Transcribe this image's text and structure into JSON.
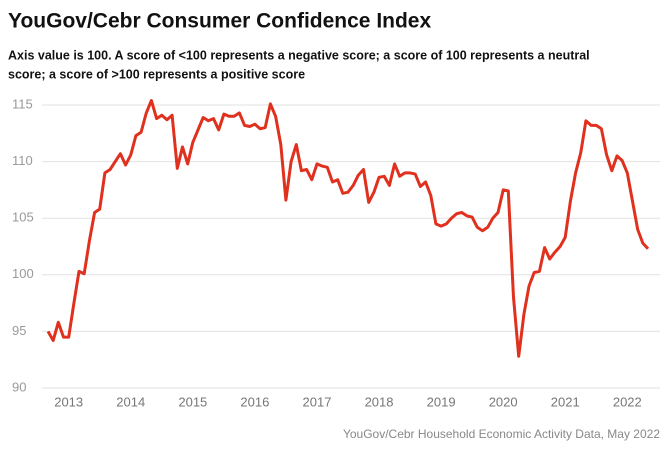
{
  "chart_data": {
    "type": "line",
    "title": "YouGov/Cebr Consumer Confidence Index",
    "subtitle": [
      "Axis value is 100. A score of <100 represents a negative score; a score of 100 represents a neutral",
      "score; a score of >100 represents a positive score"
    ],
    "source": "YouGov/Cebr Household Economic Activity Data, May 2022",
    "categories": [
      null,
      null,
      null,
      null,
      "2013",
      null,
      null,
      null,
      null,
      null,
      null,
      null,
      null,
      null,
      null,
      null,
      "2014",
      null,
      null,
      null,
      null,
      null,
      null,
      null,
      null,
      null,
      null,
      null,
      "2015",
      null,
      null,
      null,
      null,
      null,
      null,
      null,
      null,
      null,
      null,
      null,
      "2016",
      null,
      null,
      null,
      null,
      null,
      null,
      null,
      null,
      null,
      null,
      null,
      "2017",
      null,
      null,
      null,
      null,
      null,
      null,
      null,
      null,
      null,
      null,
      null,
      "2018",
      null,
      null,
      null,
      null,
      null,
      null,
      null,
      null,
      null,
      null,
      null,
      "2019",
      null,
      null,
      null,
      null,
      null,
      null,
      null,
      null,
      null,
      null,
      null,
      "2020",
      null,
      null,
      null,
      null,
      null,
      null,
      null,
      null,
      null,
      null,
      null,
      "2021",
      null,
      null,
      null,
      null,
      null,
      null,
      null,
      null,
      null,
      null,
      null,
      "2022",
      null,
      null,
      null,
      null
    ],
    "series": [
      {
        "name": "Consumer Confidence Index",
        "color": "#e0301e",
        "values": [
          95,
          94.2,
          95.8,
          94.5,
          94.5,
          97.5,
          100.3,
          100.1,
          103,
          105.5,
          105.8,
          109,
          109.3,
          110,
          110.7,
          109.7,
          110.6,
          112.3,
          112.6,
          114.3,
          115.4,
          113.8,
          114.1,
          113.7,
          114.1,
          109.4,
          111.3,
          109.8,
          111.7,
          112.8,
          113.9,
          113.6,
          113.8,
          112.8,
          114.2,
          114.0,
          114.0,
          114.3,
          113.2,
          113.1,
          113.3,
          112.9,
          113.0,
          115.1,
          114.0,
          111.5,
          106.6,
          110.0,
          111.5,
          109.2,
          109.3,
          108.4,
          109.8,
          109.6,
          109.5,
          108.2,
          108.4,
          107.2,
          107.3,
          107.9,
          108.8,
          109.3,
          106.4,
          107.3,
          108.6,
          108.7,
          107.9,
          109.8,
          108.7,
          109.0,
          109.0,
          108.9,
          107.8,
          108.2,
          107.0,
          104.5,
          104.3,
          104.5,
          105.0,
          105.4,
          105.5,
          105.2,
          105.1,
          104.2,
          103.9,
          104.2,
          105.0,
          105.5,
          107.5,
          107.4,
          98,
          92.8,
          96.5,
          99.0,
          100.2,
          100.3,
          102.4,
          101.4,
          102.0,
          102.5,
          103.3,
          106.5,
          109.0,
          110.8,
          113.6,
          113.2,
          113.2,
          112.9,
          110.6,
          109.2,
          110.5,
          110.1,
          109.0,
          106.5,
          104.0,
          102.8,
          102.3
        ]
      }
    ],
    "ylim": [
      90,
      115
    ],
    "yticks": [
      90,
      95,
      100,
      105,
      110,
      115
    ],
    "grid": true
  }
}
